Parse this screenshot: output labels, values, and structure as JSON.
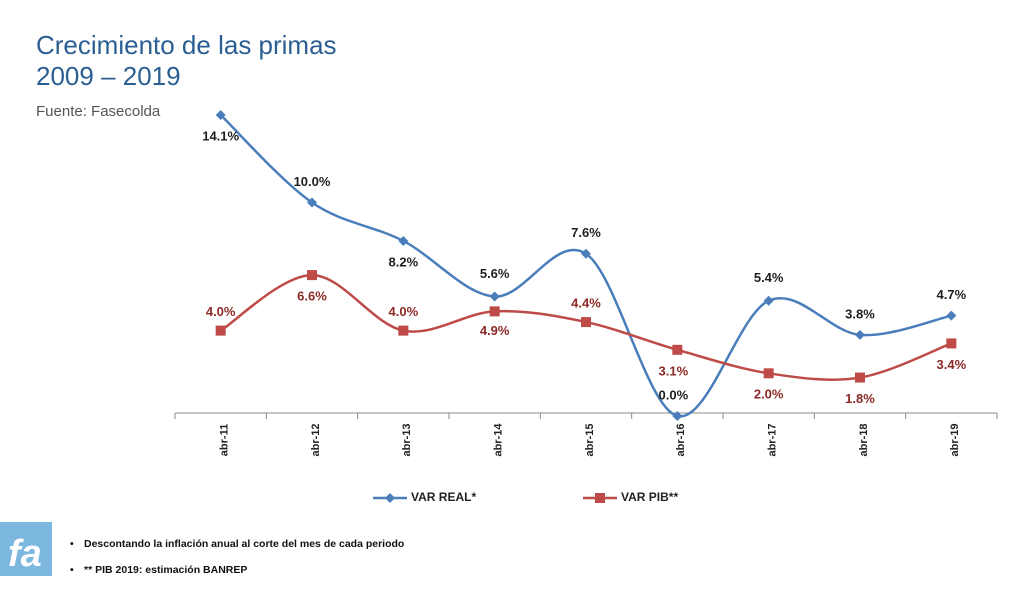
{
  "title_line1": "Crecimiento de las primas",
  "title_line2": "2009 – 2019",
  "source": "Fuente: Fasecolda",
  "colors": {
    "real": "#4a7ebb",
    "pib": "#be4b48",
    "title": "#2b5f93",
    "logo": "#7cb7e0"
  },
  "logo_text": "fa",
  "notes": [
    "Descontando la inflación anual al corte del mes de cada periodo",
    "** PIB 2019: estimación BANREP"
  ],
  "chart_data": {
    "type": "line",
    "categories": [
      "abr-11",
      "abr-12",
      "abr-13",
      "abr-14",
      "abr-15",
      "abr-16",
      "abr-17",
      "abr-18",
      "abr-19"
    ],
    "series": [
      {
        "name": "VAR REAL*",
        "values": [
          14.1,
          10.0,
          8.2,
          5.6,
          7.6,
          0.0,
          5.4,
          3.8,
          4.7
        ],
        "labels": [
          "14.1%",
          "10.0%",
          "8.2%",
          "5.6%",
          "7.6%",
          "0.0%",
          "5.4%",
          "3.8%",
          "4.7%"
        ],
        "marker": "diamond",
        "smooth": true
      },
      {
        "name": "VAR PIB**",
        "values": [
          4.0,
          6.6,
          4.0,
          4.9,
          4.4,
          3.1,
          2.0,
          1.8,
          3.4
        ],
        "labels": [
          "4.0%",
          "6.6%",
          "4.0%",
          "4.9%",
          "4.4%",
          "3.1%",
          "2.0%",
          "1.8%",
          "3.4%"
        ],
        "marker": "square",
        "smooth": true
      }
    ],
    "ylim": [
      0,
      14.1
    ],
    "legend_position": "bottom",
    "grid": false
  }
}
